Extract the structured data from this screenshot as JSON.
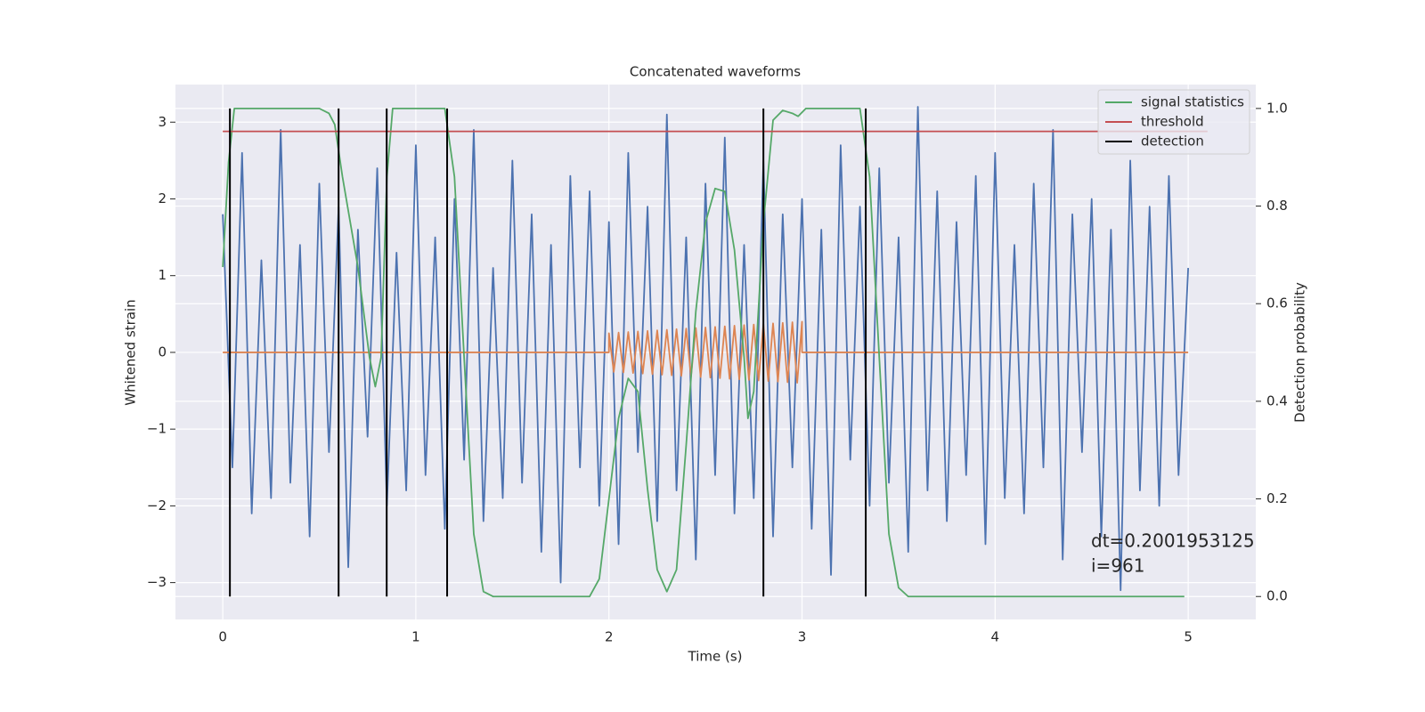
{
  "chart_data": {
    "type": "line",
    "title": "Concatenated waveforms",
    "xlabel": "Time (s)",
    "ylabel": "Whitened strain",
    "y2label": "Detection probability",
    "xlim": [
      -0.245,
      5.35
    ],
    "ylim": [
      -3.48,
      3.49
    ],
    "y2lim": [
      -0.047,
      1.049
    ],
    "xticks": [
      0,
      1,
      2,
      3,
      4,
      5
    ],
    "yticks": [
      {
        "value": -3,
        "label": "−3"
      },
      {
        "value": -2,
        "label": "−2"
      },
      {
        "value": -1,
        "label": "−1"
      },
      0,
      1,
      2,
      3
    ],
    "y2ticks": [
      {
        "value": 0,
        "label": "0.0"
      },
      0.2,
      0.4,
      0.6,
      0.8,
      {
        "value": 1,
        "label": "1.0"
      }
    ],
    "grid": true,
    "legend": "upper right",
    "annotation": [
      "dt=0.2001953125",
      " i=961"
    ],
    "series": [
      {
        "color": "#4c72b0",
        "x": [
          0,
          0.05,
          0.1,
          0.15,
          0.2,
          0.25,
          0.3,
          0.35,
          0.4,
          0.45,
          0.5,
          0.55,
          0.6,
          0.65,
          0.7,
          0.75,
          0.8,
          0.85,
          0.9,
          0.95,
          1,
          1.05,
          1.1,
          1.15,
          1.2,
          1.25,
          1.3,
          1.35,
          1.4,
          1.45,
          1.5,
          1.55,
          1.6,
          1.65,
          1.7,
          1.75,
          1.8,
          1.85,
          1.9,
          1.95,
          2,
          2.05,
          2.1,
          2.15,
          2.2,
          2.25,
          2.3,
          2.35,
          2.4,
          2.45,
          2.5,
          2.55,
          2.6,
          2.65,
          2.7,
          2.75,
          2.8,
          2.85,
          2.9,
          2.95,
          3,
          3.05,
          3.1,
          3.15,
          3.2,
          3.25,
          3.3,
          3.35,
          3.4,
          3.45,
          3.5,
          3.55,
          3.6,
          3.65,
          3.7,
          3.75,
          3.8,
          3.85,
          3.9,
          3.95,
          4,
          4.05,
          4.1,
          4.15,
          4.2,
          4.25,
          4.3,
          4.35,
          4.4,
          4.45,
          4.5,
          4.55,
          4.6,
          4.65,
          4.7,
          4.75,
          4.8,
          4.85,
          4.9,
          4.95,
          5
        ],
        "values": [
          1.8,
          -1.5,
          2.6,
          -2.1,
          1.2,
          -1.9,
          2.9,
          -1.7,
          1.4,
          -2.4,
          2.2,
          -1.3,
          1.9,
          -2.8,
          1.6,
          -1.1,
          2.4,
          -2.0,
          1.3,
          -1.8,
          2.7,
          -1.6,
          1.5,
          -2.3,
          2.0,
          -1.4,
          2.9,
          -2.2,
          1.1,
          -1.9,
          2.5,
          -1.7,
          1.8,
          -2.6,
          1.4,
          -3.0,
          2.3,
          -1.5,
          2.1,
          -2.0,
          1.7,
          -2.5,
          2.6,
          -1.3,
          1.9,
          -2.2,
          3.1,
          -1.8,
          1.5,
          -2.7,
          2.2,
          -1.6,
          2.8,
          -2.1,
          1.4,
          -1.9,
          2.5,
          -2.4,
          1.8,
          -1.5,
          2.0,
          -2.3,
          1.6,
          -2.9,
          2.7,
          -1.4,
          1.9,
          -2.0,
          2.4,
          -1.7,
          1.5,
          -2.6,
          3.2,
          -1.8,
          2.1,
          -2.2,
          1.7,
          -1.6,
          2.3,
          -2.5,
          2.6,
          -1.9,
          1.4,
          -2.1,
          2.2,
          -1.5,
          2.9,
          -2.7,
          1.8,
          -1.3,
          2.0,
          -2.4,
          1.6,
          -3.1,
          2.5,
          -1.8,
          1.9,
          -2.0,
          2.3,
          -1.6,
          1.1
        ]
      },
      {
        "color": "#dd8452",
        "x": [
          0,
          2,
          2,
          2.025,
          2.05,
          2.075,
          2.1,
          2.125,
          2.15,
          2.175,
          2.2,
          2.225,
          2.25,
          2.275,
          2.3,
          2.325,
          2.35,
          2.375,
          2.4,
          2.425,
          2.45,
          2.475,
          2.5,
          2.525,
          2.55,
          2.575,
          2.6,
          2.625,
          2.65,
          2.675,
          2.7,
          2.725,
          2.75,
          2.775,
          2.8,
          2.825,
          2.85,
          2.875,
          2.9,
          2.925,
          2.95,
          2.975,
          3,
          3,
          5
        ],
        "values": [
          0,
          0,
          0.25,
          -0.254,
          0.258,
          -0.261,
          0.265,
          -0.269,
          0.273,
          -0.276,
          0.28,
          -0.284,
          0.288,
          -0.291,
          0.295,
          -0.299,
          0.303,
          -0.306,
          0.31,
          -0.314,
          0.318,
          -0.321,
          0.325,
          -0.329,
          0.333,
          -0.336,
          0.34,
          -0.344,
          0.348,
          -0.351,
          0.355,
          -0.359,
          0.363,
          -0.366,
          0.37,
          -0.374,
          0.378,
          -0.381,
          0.385,
          -0.389,
          0.393,
          -0.396,
          0.4,
          0,
          0
        ]
      },
      {
        "name": "signal statistics",
        "color": "#55a868",
        "axis": "y2",
        "x": [
          0,
          0.03,
          0.06,
          0.1,
          0.5,
          0.55,
          0.58,
          0.62,
          0.7,
          0.76,
          0.79,
          0.82,
          0.85,
          0.88,
          1.15,
          1.2,
          1.25,
          1.3,
          1.35,
          1.4,
          1.9,
          1.95,
          2,
          2.05,
          2.1,
          2.15,
          2.2,
          2.25,
          2.3,
          2.35,
          2.4,
          2.45,
          2.5,
          2.55,
          2.6,
          2.65,
          2.7,
          2.72,
          2.75,
          2.8,
          2.85,
          2.9,
          2.95,
          2.98,
          3.02,
          3.3,
          3.35,
          3.4,
          3.45,
          3.5,
          3.55,
          4.98
        ],
        "values": [
          0.675,
          0.89,
          1,
          1,
          1,
          0.99,
          0.967,
          0.86,
          0.675,
          0.49,
          0.43,
          0.49,
          0.86,
          1,
          1,
          0.86,
          0.49,
          0.128,
          0.01,
          0,
          0,
          0.036,
          0.2,
          0.365,
          0.447,
          0.42,
          0.22,
          0.055,
          0.01,
          0.055,
          0.31,
          0.584,
          0.766,
          0.836,
          0.83,
          0.71,
          0.49,
          0.365,
          0.42,
          0.766,
          0.976,
          0.996,
          0.99,
          0.984,
          1,
          1,
          0.86,
          0.49,
          0.128,
          0.018,
          0,
          0
        ]
      },
      {
        "name": "threshold",
        "color": "#c44e52",
        "axis": "y2",
        "x": [
          0,
          5.1
        ],
        "values": [
          0.953,
          0.953
        ]
      },
      {
        "name": "detection",
        "color": "#000000",
        "axis": "y2",
        "type": "vlines",
        "x": [
          0.037,
          0.6,
          0.849,
          1.162,
          2.8,
          3.33
        ],
        "ymin": 0,
        "ymax": 1
      }
    ]
  }
}
